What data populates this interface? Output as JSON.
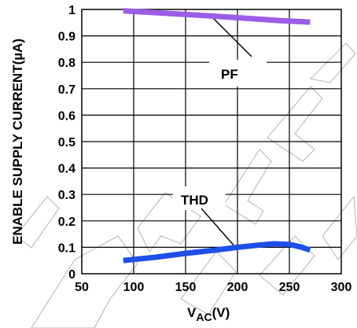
{
  "chart_data": {
    "type": "line",
    "title": "",
    "xlabel": {
      "main": "V",
      "sub": "AC",
      "unit": "(V)"
    },
    "ylabel": "ENABLE SUPPLY CURRENT(µA)",
    "xlim": [
      50,
      300
    ],
    "ylim": [
      0,
      1
    ],
    "x_ticks": [
      50,
      100,
      150,
      200,
      250,
      300
    ],
    "y_ticks": [
      0,
      0.1,
      0.2,
      0.3,
      0.4,
      0.5,
      0.6,
      0.7,
      0.8,
      0.9,
      1
    ],
    "grid": true,
    "series": [
      {
        "name": "PF",
        "color": "#9b5de5",
        "x": [
          90,
          120,
          150,
          180,
          210,
          240,
          270
        ],
        "y": [
          0.995,
          0.988,
          0.981,
          0.974,
          0.966,
          0.958,
          0.952
        ]
      },
      {
        "name": "THD",
        "color": "#1e4fe8",
        "x": [
          90,
          120,
          150,
          180,
          200,
          220,
          235,
          250,
          260,
          270
        ],
        "y": [
          0.05,
          0.062,
          0.077,
          0.09,
          0.1,
          0.108,
          0.113,
          0.111,
          0.102,
          0.09
        ]
      }
    ],
    "annotations": [
      {
        "text": "PF",
        "series": "PF"
      },
      {
        "text": "THD",
        "series": "THD"
      }
    ]
  }
}
